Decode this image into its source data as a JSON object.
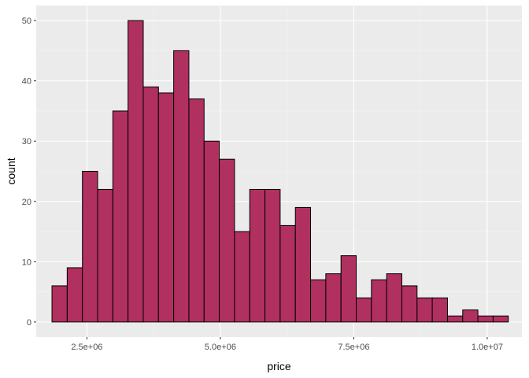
{
  "chart_data": {
    "type": "bar",
    "title": "",
    "xlabel": "price",
    "ylabel": "count",
    "xlim": [
      1550000,
      10650000
    ],
    "ylim": [
      -2.5,
      52.5
    ],
    "x_ticks": [
      2500000,
      5000000,
      7500000,
      10000000
    ],
    "x_tick_labels": [
      "2.5e+06",
      "5.0e+06",
      "7.5e+06",
      "1.0e+07"
    ],
    "y_ticks": [
      0,
      10,
      20,
      30,
      40,
      50
    ],
    "y_tick_labels": [
      "0",
      "10",
      "20",
      "30",
      "40",
      "50"
    ],
    "grid": true,
    "bin_width": 285000,
    "x": [
      1988000,
      2273000,
      2558000,
      2843000,
      3128000,
      3413000,
      3698000,
      3983000,
      4268000,
      4553000,
      4838000,
      5123000,
      5408000,
      5693000,
      5978000,
      6263000,
      6548000,
      6833000,
      7118000,
      7403000,
      7688000,
      7973000,
      8258000,
      8543000,
      8828000,
      9113000,
      9398000,
      9683000,
      9968000,
      10253000
    ],
    "values": [
      6,
      9,
      25,
      22,
      35,
      50,
      39,
      38,
      45,
      37,
      30,
      27,
      15,
      22,
      22,
      16,
      19,
      7,
      8,
      11,
      4,
      7,
      8,
      6,
      4,
      4,
      1,
      2,
      1,
      1
    ],
    "colors": {
      "bar_fill": "#B03060",
      "bar_stroke": "#000000",
      "panel_background": "#EBEBEB",
      "grid_major": "#FFFFFF",
      "grid_minor": "#F5F5F5",
      "tick_text": "#4D4D4D"
    }
  }
}
